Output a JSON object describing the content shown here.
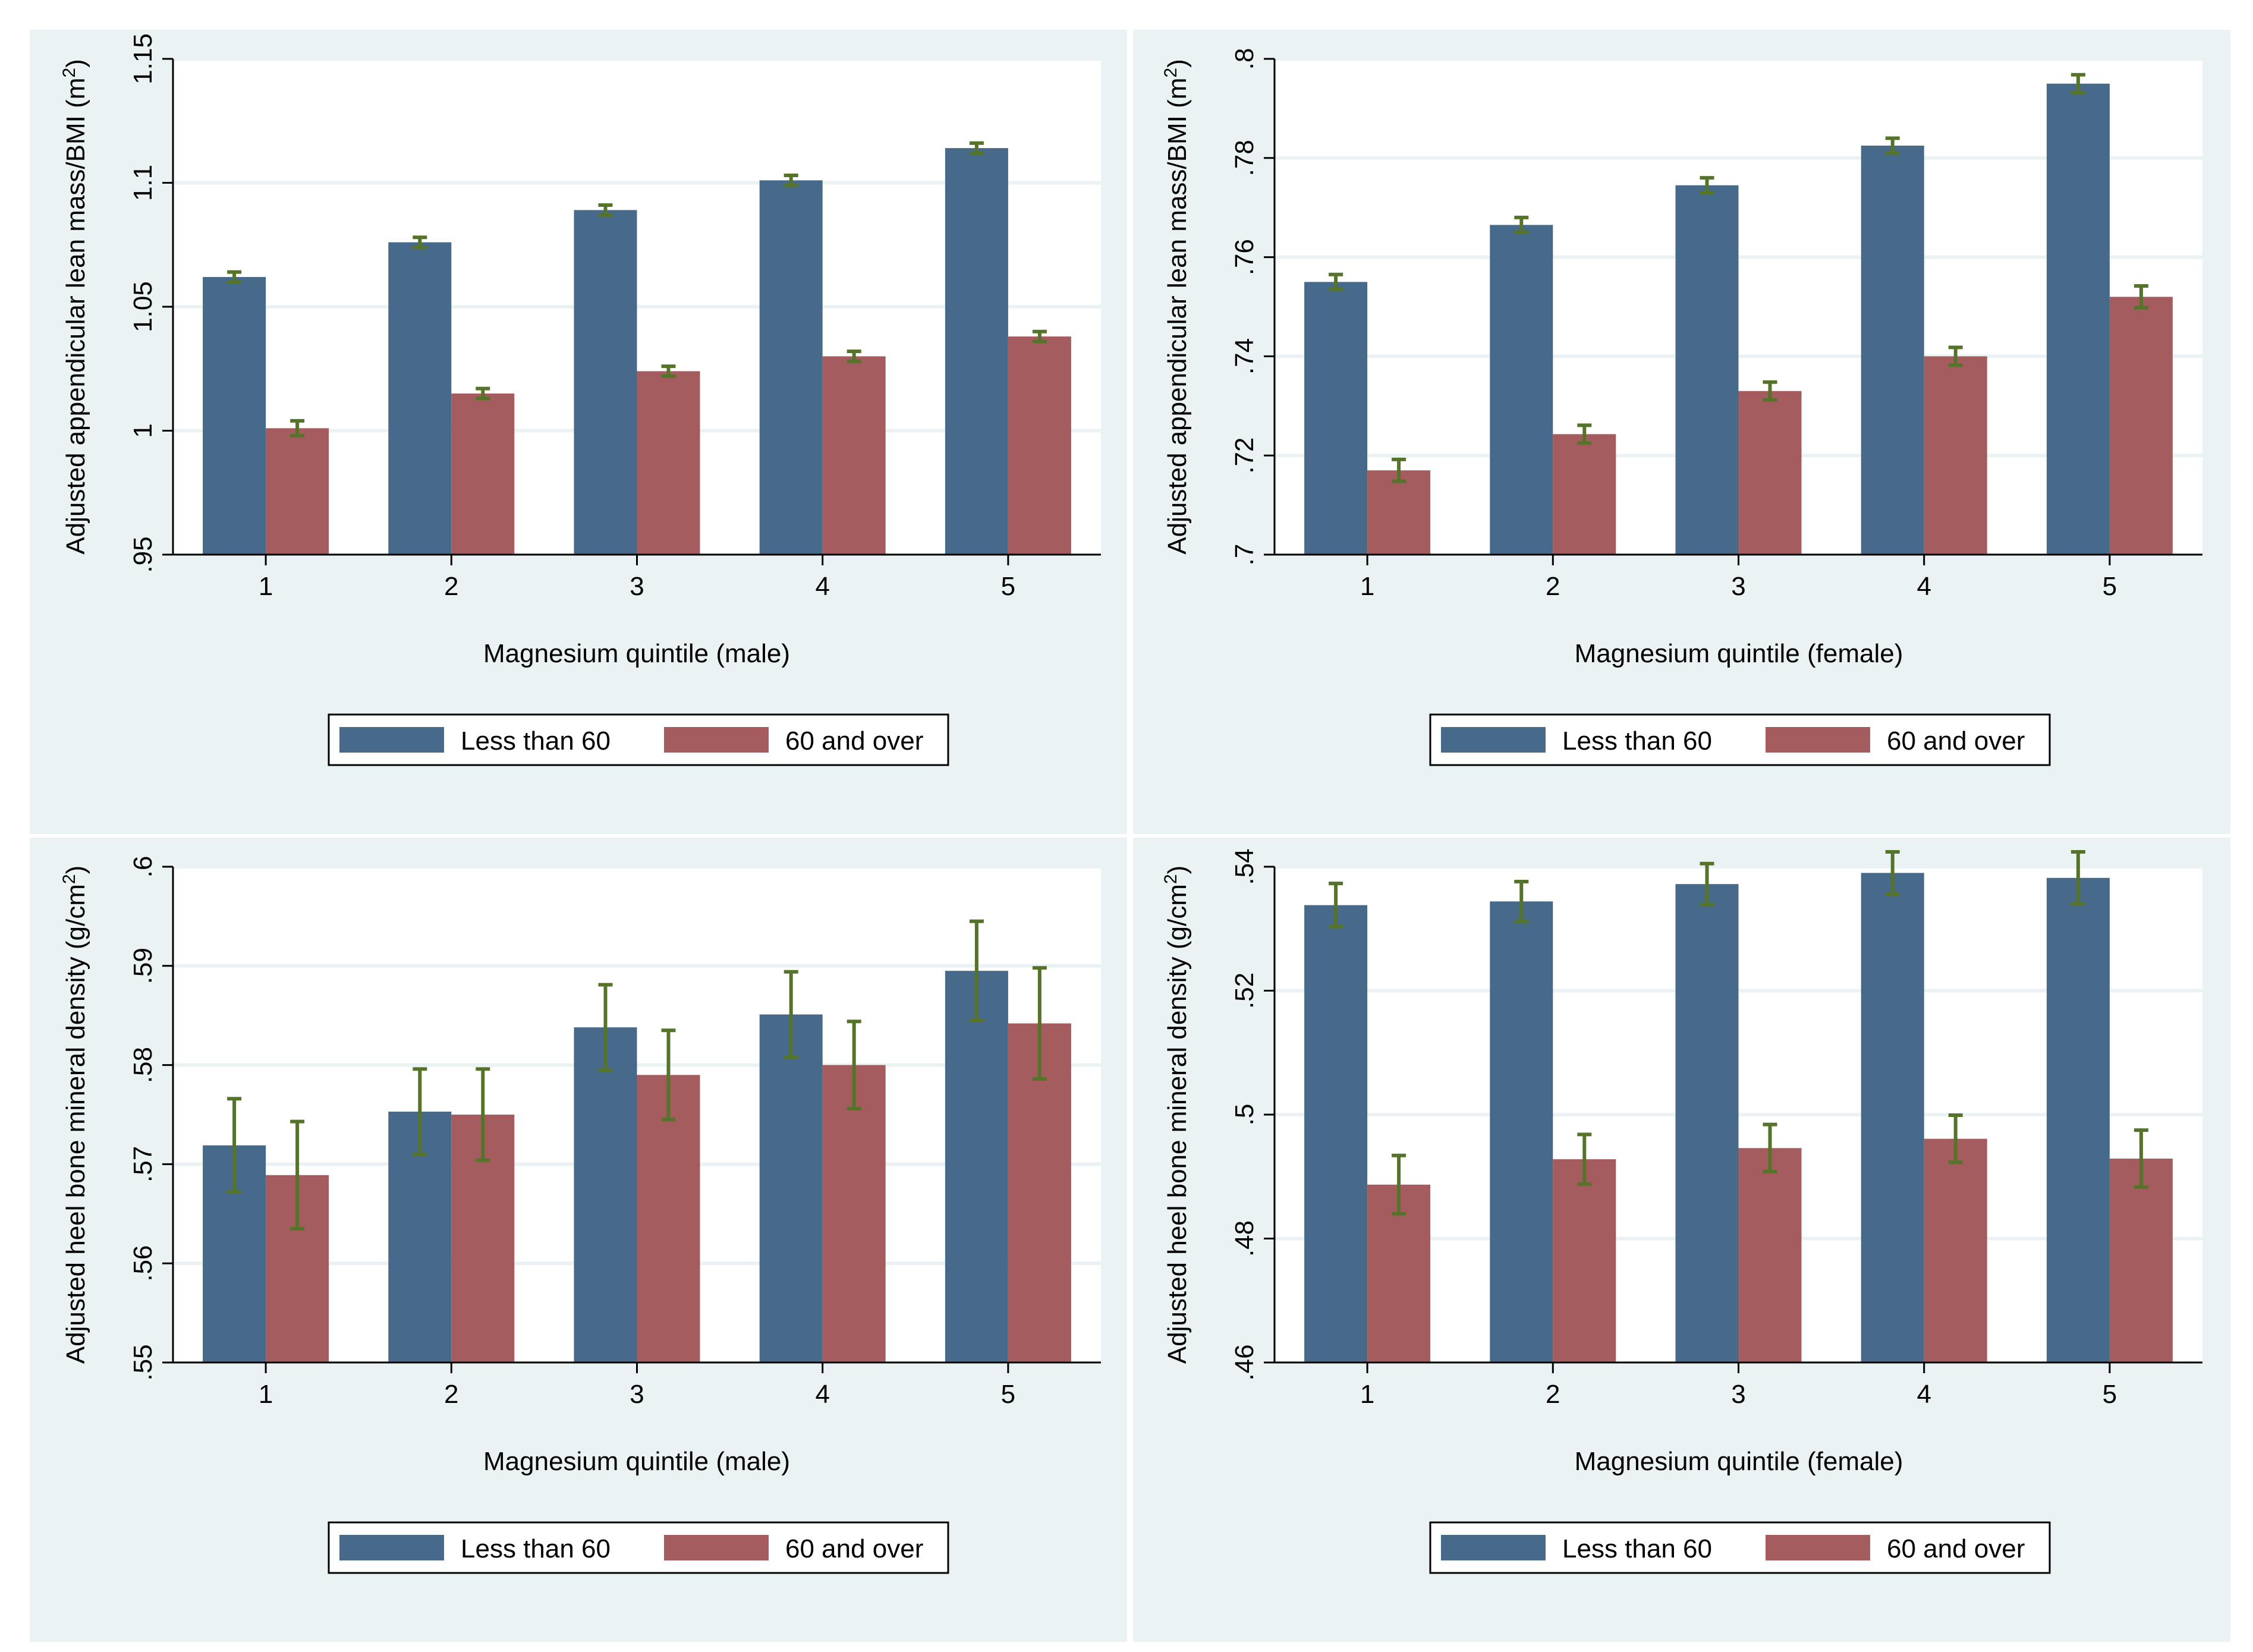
{
  "figure": {
    "background": "#eaf2f3",
    "colors": {
      "less_than_60": "#476a8b",
      "sixty_and_over": "#a55c5f",
      "error_bars": "#55742a"
    }
  },
  "chart_data": [
    {
      "type": "bar",
      "title": "",
      "xlabel": "Magnesium quintile (male)",
      "ylabel": "Adjusted appendicular lean mass/BMI (m",
      "ylabel_sup": "2",
      "ylabel_close": ")",
      "ylim": [
        0.95,
        1.15
      ],
      "yticks": [
        0.95,
        1,
        1.05,
        1.1,
        1.15
      ],
      "ytick_labels": [
        ".95",
        "1",
        "1.05",
        "1.1",
        "1.15"
      ],
      "categories": [
        "1",
        "2",
        "3",
        "4",
        "5"
      ],
      "series": [
        {
          "name": "Less than 60",
          "values": [
            1.062,
            1.076,
            1.089,
            1.101,
            1.114
          ],
          "error": [
            0.002,
            0.002,
            0.002,
            0.002,
            0.002
          ]
        },
        {
          "name": "60 and over",
          "values": [
            1.001,
            1.015,
            1.024,
            1.03,
            1.038
          ],
          "error": [
            0.003,
            0.002,
            0.002,
            0.002,
            0.002
          ]
        }
      ],
      "legend": [
        "Less than 60",
        "60 and over"
      ],
      "legend_position": "bottom"
    },
    {
      "type": "bar",
      "title": "",
      "xlabel": "Magnesium quintile (female)",
      "ylabel": "Adjusted appendicular lean mass/BMI (m",
      "ylabel_sup": "2",
      "ylabel_close": ")",
      "ylim": [
        0.7,
        0.8
      ],
      "yticks": [
        0.7,
        0.72,
        0.74,
        0.76,
        0.78,
        0.8
      ],
      "ytick_labels": [
        ".7",
        ".72",
        ".74",
        ".76",
        ".78",
        ".8"
      ],
      "categories": [
        "1",
        "2",
        "3",
        "4",
        "5"
      ],
      "series": [
        {
          "name": "Less than 60",
          "values": [
            0.755,
            0.7665,
            0.7745,
            0.7825,
            0.795
          ],
          "error": [
            0.0015,
            0.0015,
            0.0015,
            0.0015,
            0.0018
          ]
        },
        {
          "name": "60 and over",
          "values": [
            0.717,
            0.7243,
            0.733,
            0.74,
            0.752
          ],
          "error": [
            0.0022,
            0.0018,
            0.0018,
            0.0018,
            0.0022
          ]
        }
      ],
      "legend": [
        "Less than 60",
        "60 and over"
      ],
      "legend_position": "bottom"
    },
    {
      "type": "bar",
      "title": "",
      "xlabel": "Magnesium quintile (male)",
      "ylabel": "Adjusted heel bone mineral density (g/cm",
      "ylabel_sup": "2",
      "ylabel_close": ")",
      "ylim": [
        0.55,
        0.6
      ],
      "yticks": [
        0.55,
        0.56,
        0.57,
        0.58,
        0.59,
        0.6
      ],
      "ytick_labels": [
        ".55",
        ".56",
        ".57",
        ".58",
        ".59",
        ".6"
      ],
      "categories": [
        "1",
        "2",
        "3",
        "4",
        "5"
      ],
      "series": [
        {
          "name": "Less than 60",
          "values": [
            0.5719,
            0.5753,
            0.5838,
            0.5851,
            0.5895
          ],
          "error": [
            0.0047,
            0.0043,
            0.0043,
            0.0043,
            0.005
          ]
        },
        {
          "name": "60 and over",
          "values": [
            0.5689,
            0.575,
            0.579,
            0.58,
            0.5842
          ],
          "error": [
            0.0054,
            0.0046,
            0.0045,
            0.0044,
            0.0056
          ]
        }
      ],
      "legend": [
        "Less than 60",
        "60 and over"
      ],
      "legend_position": "bottom"
    },
    {
      "type": "bar",
      "title": "",
      "xlabel": "Magnesium quintile (female)",
      "ylabel": "Adjusted heel bone mineral density (g/cm",
      "ylabel_sup": "2",
      "ylabel_close": ")",
      "ylim": [
        0.46,
        0.54
      ],
      "yticks": [
        0.46,
        0.48,
        0.5,
        0.52,
        0.54
      ],
      "ytick_labels": [
        ".46",
        ".48",
        ".5",
        ".52",
        ".54"
      ],
      "categories": [
        "1",
        "2",
        "3",
        "4",
        "5"
      ],
      "series": [
        {
          "name": "Less than 60",
          "values": [
            0.5338,
            0.5344,
            0.5372,
            0.539,
            0.5382
          ],
          "error": [
            0.0035,
            0.0032,
            0.0033,
            0.0034,
            0.0042
          ]
        },
        {
          "name": "60 and over",
          "values": [
            0.4887,
            0.4928,
            0.4946,
            0.4961,
            0.4929
          ],
          "error": [
            0.0047,
            0.004,
            0.0038,
            0.0038,
            0.0046
          ]
        }
      ],
      "legend": [
        "Less than 60",
        "60 and over"
      ],
      "legend_position": "bottom"
    }
  ]
}
